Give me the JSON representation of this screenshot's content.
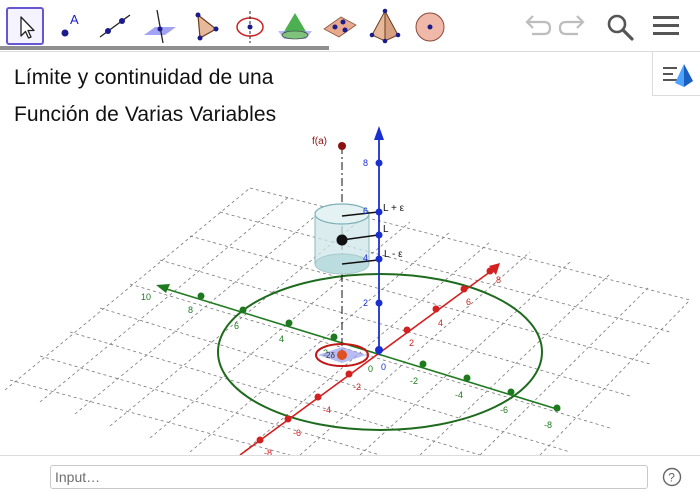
{
  "toolbar": {
    "tools": [
      {
        "name": "move-tool",
        "icon": "cursor-arrow-icon",
        "selected": true
      },
      {
        "name": "point-tool",
        "icon": "point-icon",
        "label": "A"
      },
      {
        "name": "line-tool",
        "icon": "line-icon"
      },
      {
        "name": "perpendicular-plane-tool",
        "icon": "plane-line-icon"
      },
      {
        "name": "polygon-tool",
        "icon": "triangle-icon"
      },
      {
        "name": "circle-axis-tool",
        "icon": "circle-axis-icon"
      },
      {
        "name": "intersect-surface-tool",
        "icon": "cone-icon"
      },
      {
        "name": "plane-three-points-tool",
        "icon": "plane-points-icon"
      },
      {
        "name": "pyramid-tool",
        "icon": "pyramid-icon"
      },
      {
        "name": "sphere-tool",
        "icon": "sphere-icon"
      }
    ],
    "undo_icon": "undo-icon",
    "redo_icon": "redo-icon",
    "search_icon": "search-icon",
    "menu_icon": "menu-icon",
    "progress": 0.47
  },
  "graphics": {
    "title_line1": "Límite y continuidad de una",
    "title_line2": "Función de Varias Variables",
    "labels": {
      "fa": "f(a)",
      "l_plus": "L + ε",
      "l": "L",
      "l_minus": "L - ε"
    },
    "z_ticks": [
      "8",
      "6",
      "4",
      "2"
    ],
    "x_ticks": [
      "-8",
      "-6",
      "-4",
      "-2",
      "2",
      "4",
      "6",
      "8"
    ],
    "y_ticks": [
      "10",
      "8",
      "6",
      "4",
      "2",
      "-2",
      "-4",
      "-6",
      "-8"
    ],
    "origin_labels": [
      "0",
      "0"
    ],
    "small_label": "2δ",
    "colors": {
      "x_axis": "#d32020",
      "y_axis": "#1e7a1e",
      "z_axis": "#1a2fd1",
      "circle": "#1e6b1e",
      "grid": "#666666",
      "cylinder": "#bcdde0",
      "fa_point": "#8b1010",
      "point_l": "#111111"
    },
    "style_bar_icon": "graphics-style-icon"
  },
  "input": {
    "placeholder": "Input…",
    "help_icon": "help-icon"
  }
}
